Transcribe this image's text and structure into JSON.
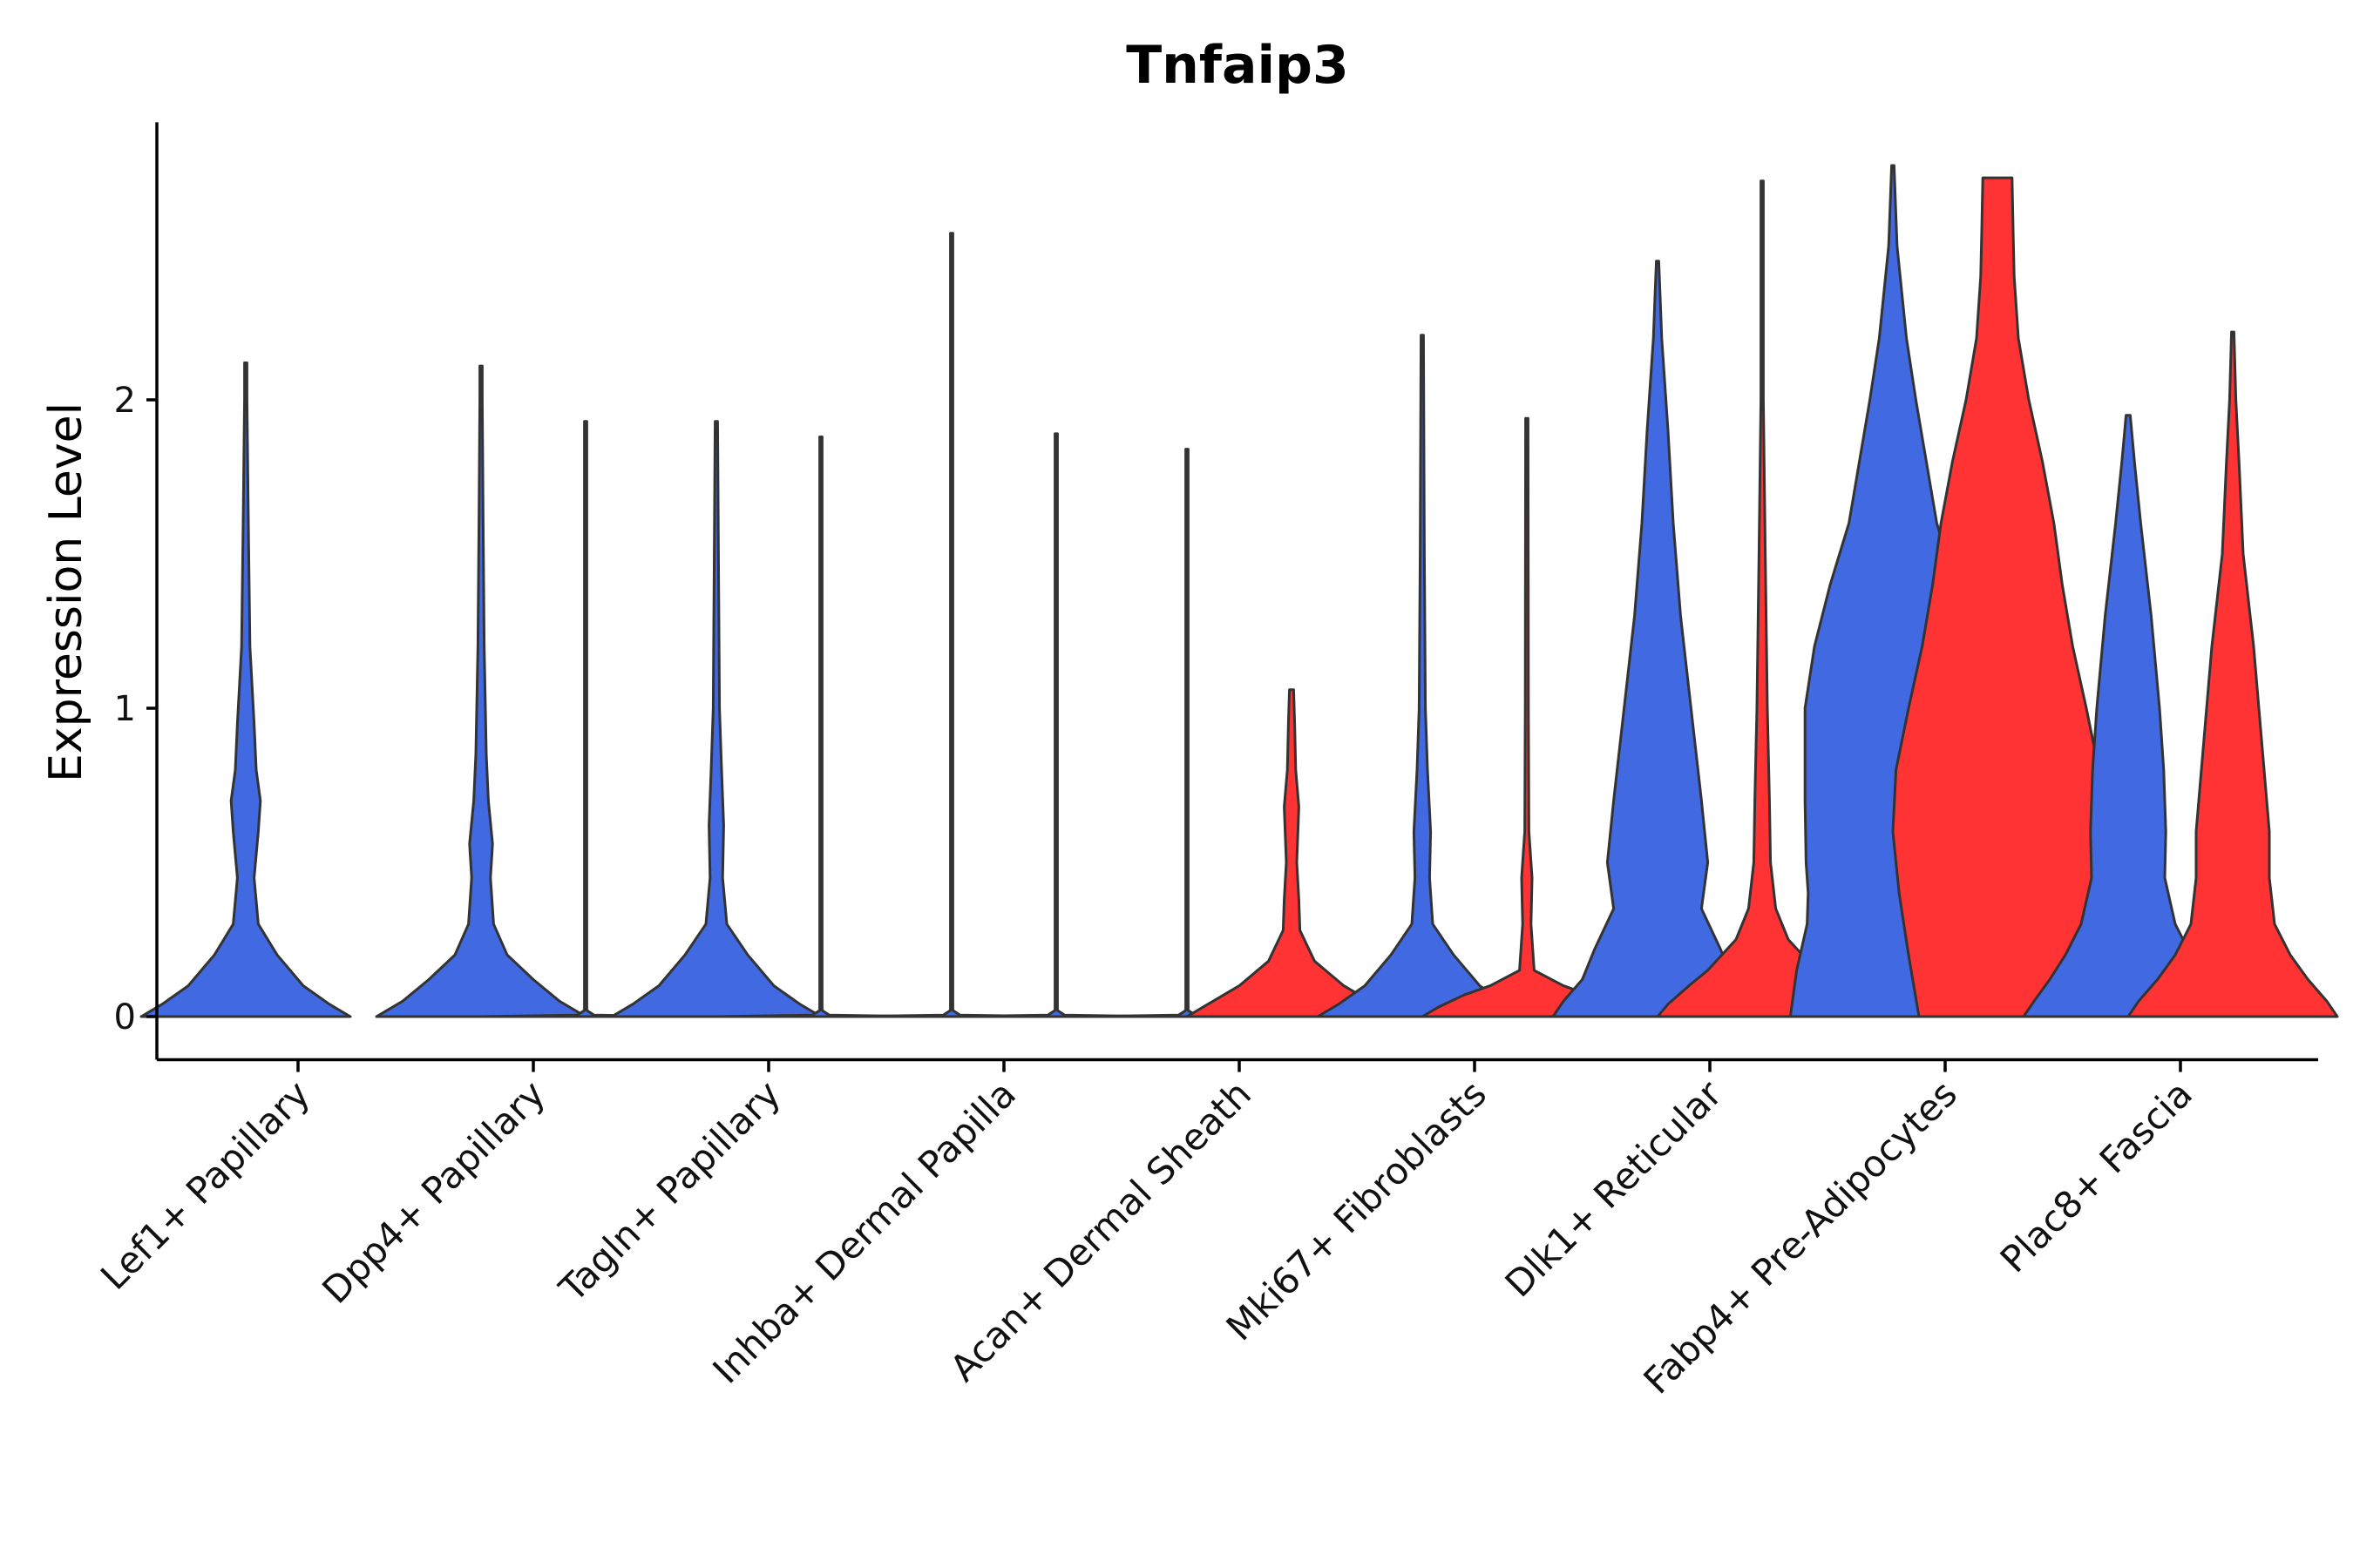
{
  "chart_data": {
    "type": "violin",
    "title": "Tnfaip3",
    "xlabel": "",
    "ylabel": "Expression Level",
    "ylim": [
      -0.14,
      2.9
    ],
    "yticks": [
      0,
      1,
      2
    ],
    "ytick_labels": [
      "0",
      "1",
      "2"
    ],
    "grid": false,
    "legend": "none",
    "colors": {
      "blue": "#4169E1",
      "red": "#FF3333",
      "outline": "#333333"
    },
    "categories": [
      "Lef1+ Papillary",
      "Dpp4+ Papillary",
      "Tagln+ Papillary",
      "Inhba+ Dermal Papilla",
      "Acan+ Dermal Sheath",
      "Mki67+ Fibroblasts",
      "Dlk1+ Reticular",
      "Fabp4+ Pre-Adipocytes",
      "Plac8+ Fascia"
    ],
    "violins": [
      {
        "category": "Lef1+ Papillary",
        "side": "left",
        "color": "blue",
        "max": 2.12,
        "profile": [
          [
            0,
            1.0
          ],
          [
            0.04,
            0.8
          ],
          [
            0.1,
            0.55
          ],
          [
            0.2,
            0.3
          ],
          [
            0.3,
            0.12
          ],
          [
            0.45,
            0.08
          ],
          [
            0.6,
            0.12
          ],
          [
            0.7,
            0.14
          ],
          [
            0.8,
            0.1
          ],
          [
            0.95,
            0.08
          ],
          [
            1.2,
            0.04
          ],
          [
            1.6,
            0.025
          ],
          [
            2.0,
            0.01
          ],
          [
            2.12,
            0.003
          ]
        ]
      },
      {
        "category": "Dpp4+ Papillary",
        "side": "left",
        "color": "blue",
        "max": 2.11,
        "profile": [
          [
            0,
            1.0
          ],
          [
            0.05,
            0.75
          ],
          [
            0.12,
            0.5
          ],
          [
            0.2,
            0.25
          ],
          [
            0.3,
            0.12
          ],
          [
            0.45,
            0.09
          ],
          [
            0.56,
            0.11
          ],
          [
            0.7,
            0.07
          ],
          [
            0.85,
            0.05
          ],
          [
            1.2,
            0.03
          ],
          [
            1.6,
            0.02
          ],
          [
            2.0,
            0.008
          ],
          [
            2.11,
            0.003
          ]
        ]
      },
      {
        "category": "Dpp4+ Papillary",
        "side": "right",
        "color": "blue",
        "max": 1.93,
        "profile": [
          [
            0,
            1.0
          ],
          [
            0.005,
            0.08
          ],
          [
            0.02,
            0.012
          ],
          [
            0.5,
            0.008
          ],
          [
            1.93,
            0.004
          ]
        ]
      },
      {
        "category": "Tagln+ Papillary",
        "side": "left",
        "color": "blue",
        "max": 1.93,
        "profile": [
          [
            0,
            1.0
          ],
          [
            0.04,
            0.8
          ],
          [
            0.1,
            0.55
          ],
          [
            0.2,
            0.3
          ],
          [
            0.3,
            0.1
          ],
          [
            0.45,
            0.06
          ],
          [
            0.62,
            0.07
          ],
          [
            0.8,
            0.05
          ],
          [
            1.0,
            0.03
          ],
          [
            1.5,
            0.02
          ],
          [
            1.93,
            0.005
          ]
        ]
      },
      {
        "category": "Tagln+ Papillary",
        "side": "right",
        "color": "blue",
        "max": 1.88,
        "profile": [
          [
            0,
            1.0
          ],
          [
            0.005,
            0.08
          ],
          [
            0.02,
            0.012
          ],
          [
            0.5,
            0.008
          ],
          [
            1.88,
            0.004
          ]
        ]
      },
      {
        "category": "Inhba+ Dermal Papilla",
        "side": "left",
        "color": "blue",
        "max": 2.54,
        "profile": [
          [
            0,
            1.0
          ],
          [
            0.005,
            0.08
          ],
          [
            0.02,
            0.012
          ],
          [
            0.5,
            0.008
          ],
          [
            2.54,
            0.004
          ]
        ]
      },
      {
        "category": "Inhba+ Dermal Papilla",
        "side": "right",
        "color": "blue",
        "max": 1.89,
        "profile": [
          [
            0,
            1.0
          ],
          [
            0.005,
            0.08
          ],
          [
            0.02,
            0.012
          ],
          [
            0.5,
            0.008
          ],
          [
            1.89,
            0.004
          ]
        ]
      },
      {
        "category": "Acan+ Dermal Sheath",
        "side": "left",
        "color": "blue",
        "max": 1.84,
        "profile": [
          [
            0,
            1.0
          ],
          [
            0.005,
            0.08
          ],
          [
            0.02,
            0.012
          ],
          [
            0.5,
            0.008
          ],
          [
            1.84,
            0.004
          ]
        ]
      },
      {
        "category": "Acan+ Dermal Sheath",
        "side": "right",
        "color": "red",
        "max": 1.06,
        "profile": [
          [
            0,
            1.0
          ],
          [
            0.04,
            0.8
          ],
          [
            0.1,
            0.5
          ],
          [
            0.18,
            0.22
          ],
          [
            0.28,
            0.08
          ],
          [
            0.38,
            0.07
          ],
          [
            0.5,
            0.05
          ],
          [
            0.68,
            0.07
          ],
          [
            0.8,
            0.04
          ],
          [
            0.95,
            0.03
          ],
          [
            1.06,
            0.02
          ]
        ]
      },
      {
        "category": "Mki67+ Fibroblasts",
        "side": "left",
        "color": "blue",
        "max": 2.21,
        "profile": [
          [
            0,
            1.0
          ],
          [
            0.04,
            0.8
          ],
          [
            0.1,
            0.55
          ],
          [
            0.2,
            0.3
          ],
          [
            0.3,
            0.1
          ],
          [
            0.45,
            0.07
          ],
          [
            0.6,
            0.08
          ],
          [
            0.8,
            0.05
          ],
          [
            1.0,
            0.03
          ],
          [
            1.5,
            0.02
          ],
          [
            2.21,
            0.005
          ]
        ]
      },
      {
        "category": "Mki67+ Fibroblasts",
        "side": "right",
        "color": "red",
        "max": 1.94,
        "profile": [
          [
            0,
            1.0
          ],
          [
            0.03,
            0.85
          ],
          [
            0.07,
            0.6
          ],
          [
            0.1,
            0.35
          ],
          [
            0.15,
            0.07
          ],
          [
            0.3,
            0.04
          ],
          [
            0.45,
            0.05
          ],
          [
            0.6,
            0.02
          ],
          [
            1.0,
            0.015
          ],
          [
            1.94,
            0.005
          ]
        ]
      },
      {
        "category": "Dlk1+ Reticular",
        "side": "left",
        "color": "blue",
        "max": 2.45,
        "profile": [
          [
            0,
            1.0
          ],
          [
            0.05,
            0.9
          ],
          [
            0.12,
            0.72
          ],
          [
            0.22,
            0.6
          ],
          [
            0.35,
            0.42
          ],
          [
            0.5,
            0.48
          ],
          [
            0.7,
            0.42
          ],
          [
            1.0,
            0.32
          ],
          [
            1.3,
            0.22
          ],
          [
            1.6,
            0.15
          ],
          [
            1.9,
            0.1
          ],
          [
            2.2,
            0.04
          ],
          [
            2.45,
            0.01
          ]
        ]
      },
      {
        "category": "Dlk1+ Reticular",
        "side": "right",
        "color": "red",
        "max": 2.71,
        "profile": [
          [
            0,
            1.0
          ],
          [
            0.04,
            0.9
          ],
          [
            0.1,
            0.7
          ],
          [
            0.15,
            0.52
          ],
          [
            0.25,
            0.25
          ],
          [
            0.35,
            0.13
          ],
          [
            0.5,
            0.08
          ],
          [
            0.7,
            0.07
          ],
          [
            1.0,
            0.05
          ],
          [
            1.5,
            0.03
          ],
          [
            2.0,
            0.012
          ],
          [
            2.71,
            0.004
          ]
        ]
      },
      {
        "category": "Fabp4+ Pre-Adipocytes",
        "side": "left",
        "color": "blue",
        "max": 2.76,
        "profile": [
          [
            0,
            0.98
          ],
          [
            0.15,
            0.92
          ],
          [
            0.3,
            0.82
          ],
          [
            0.4,
            0.81
          ],
          [
            0.5,
            0.83
          ],
          [
            0.7,
            0.84
          ],
          [
            1.0,
            0.84
          ],
          [
            1.2,
            0.75
          ],
          [
            1.4,
            0.6
          ],
          [
            1.6,
            0.42
          ],
          [
            1.8,
            0.32
          ],
          [
            2.0,
            0.22
          ],
          [
            2.2,
            0.13
          ],
          [
            2.5,
            0.04
          ],
          [
            2.76,
            0.01
          ]
        ]
      },
      {
        "category": "Fabp4+ Pre-Adipocytes",
        "side": "right",
        "color": "red",
        "max": 2.72,
        "profile": [
          [
            0,
            0.75
          ],
          [
            0.2,
            0.85
          ],
          [
            0.4,
            0.94
          ],
          [
            0.6,
            1.0
          ],
          [
            0.8,
            0.97
          ],
          [
            1.0,
            0.85
          ],
          [
            1.2,
            0.72
          ],
          [
            1.4,
            0.62
          ],
          [
            1.6,
            0.54
          ],
          [
            1.8,
            0.43
          ],
          [
            2.0,
            0.3
          ],
          [
            2.2,
            0.2
          ],
          [
            2.4,
            0.16
          ],
          [
            2.55,
            0.15
          ],
          [
            2.72,
            0.14
          ]
        ]
      },
      {
        "category": "Plac8+ Fascia",
        "side": "left",
        "color": "blue",
        "max": 1.95,
        "profile": [
          [
            0,
            1.0
          ],
          [
            0.05,
            0.9
          ],
          [
            0.12,
            0.75
          ],
          [
            0.2,
            0.6
          ],
          [
            0.3,
            0.45
          ],
          [
            0.45,
            0.35
          ],
          [
            0.6,
            0.36
          ],
          [
            0.8,
            0.34
          ],
          [
            1.0,
            0.3
          ],
          [
            1.3,
            0.22
          ],
          [
            1.6,
            0.12
          ],
          [
            1.8,
            0.06
          ],
          [
            1.95,
            0.02
          ]
        ]
      },
      {
        "category": "Plac8+ Fascia",
        "side": "right",
        "color": "red",
        "max": 2.22,
        "profile": [
          [
            0,
            1.0
          ],
          [
            0.05,
            0.9
          ],
          [
            0.12,
            0.72
          ],
          [
            0.2,
            0.55
          ],
          [
            0.3,
            0.4
          ],
          [
            0.45,
            0.35
          ],
          [
            0.6,
            0.35
          ],
          [
            0.8,
            0.3
          ],
          [
            1.0,
            0.25
          ],
          [
            1.2,
            0.2
          ],
          [
            1.5,
            0.1
          ],
          [
            1.8,
            0.06
          ],
          [
            2.0,
            0.03
          ],
          [
            2.22,
            0.005
          ]
        ]
      }
    ]
  }
}
